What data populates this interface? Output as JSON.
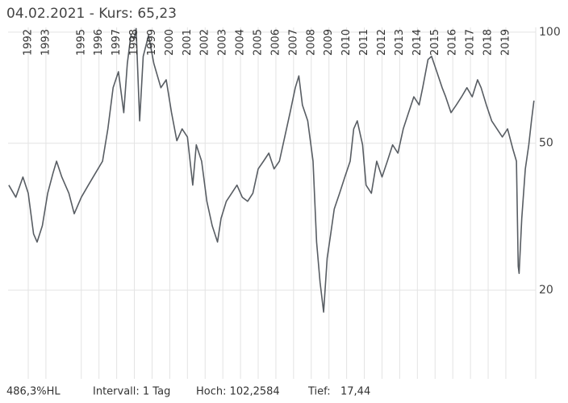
{
  "chart_data": {
    "type": "line",
    "title": "04.02.2021  -  Kurs: 65,23",
    "x": [
      1991.4,
      1991.8,
      1992.2,
      1992.5,
      1992.8,
      1993.0,
      1993.3,
      1993.6,
      1993.9,
      1994.1,
      1994.4,
      1994.8,
      1995.1,
      1995.5,
      1995.9,
      1996.3,
      1996.7,
      1997.0,
      1997.3,
      1997.6,
      1997.9,
      1998.1,
      1998.3,
      1998.5,
      1998.6,
      1998.8,
      1999.0,
      1999.3,
      1999.6,
      2000.0,
      2000.3,
      2000.6,
      2000.9,
      2001.2,
      2001.5,
      2001.8,
      2002.0,
      2002.3,
      2002.6,
      2002.9,
      2003.2,
      2003.4,
      2003.7,
      2004.0,
      2004.3,
      2004.6,
      2004.9,
      2005.2,
      2005.5,
      2005.8,
      2006.1,
      2006.4,
      2006.7,
      2007.0,
      2007.3,
      2007.6,
      2007.8,
      2008.0,
      2008.3,
      2008.6,
      2008.8,
      2009.0,
      2009.2,
      2009.4,
      2009.6,
      2009.8,
      2010.1,
      2010.4,
      2010.7,
      2010.9,
      2011.1,
      2011.4,
      2011.6,
      2011.9,
      2012.2,
      2012.5,
      2012.8,
      2013.1,
      2013.4,
      2013.7,
      2014.0,
      2014.3,
      2014.6,
      2014.8,
      2015.1,
      2015.3,
      2015.6,
      2015.9,
      2016.1,
      2016.4,
      2016.7,
      2017.0,
      2017.3,
      2017.6,
      2017.9,
      2018.1,
      2018.4,
      2018.7,
      2019.0,
      2019.3,
      2019.6,
      2019.9,
      2020.1,
      2020.2,
      2020.25,
      2020.4,
      2020.6,
      2020.8,
      2020.95,
      2021.09
    ],
    "values": [
      38.5,
      35.7,
      40.5,
      36.6,
      28.4,
      27.0,
      29.9,
      36.6,
      41.5,
      44.7,
      40.5,
      36.6,
      32.2,
      35.7,
      38.5,
      41.5,
      44.7,
      54.7,
      70.7,
      78.1,
      60.5,
      82.2,
      98.0,
      95.6,
      102.26,
      57.5,
      86.0,
      98.0,
      82.2,
      70.7,
      74.3,
      60.5,
      50.8,
      54.7,
      52.0,
      38.5,
      49.5,
      44.7,
      34.8,
      29.9,
      27.0,
      31.3,
      34.8,
      36.6,
      38.5,
      35.7,
      34.8,
      36.6,
      42.6,
      44.7,
      47.0,
      42.6,
      44.7,
      52.0,
      60.5,
      70.7,
      76.1,
      63.5,
      57.5,
      44.7,
      27.0,
      21.0,
      17.44,
      24.4,
      28.4,
      33.2,
      36.6,
      40.5,
      44.7,
      54.7,
      57.5,
      49.5,
      38.5,
      36.6,
      44.7,
      40.5,
      44.7,
      49.5,
      47.0,
      54.7,
      60.5,
      66.8,
      63.5,
      70.7,
      84.3,
      86.0,
      78.1,
      70.7,
      66.8,
      60.5,
      63.5,
      66.8,
      70.7,
      66.8,
      74.3,
      70.7,
      63.5,
      57.5,
      54.7,
      52.0,
      54.7,
      48.2,
      44.7,
      23.2,
      22.2,
      31.3,
      42.6,
      49.5,
      57.5,
      65.23
    ],
    "color": "#585d63",
    "xlim": [
      1991.36,
      2021.19
    ],
    "ylim": [
      11.5,
      103
    ],
    "log_y": true,
    "grid": true,
    "yticks": [
      100,
      50,
      20
    ],
    "xticks": [
      {
        "value": 1992.5,
        "label": "1992"
      },
      {
        "value": 1993.5,
        "label": "1993"
      },
      {
        "value": 1995.5,
        "label": "1995"
      },
      {
        "value": 1996.5,
        "label": "1996"
      },
      {
        "value": 1997.5,
        "label": "1997"
      },
      {
        "value": 1998.5,
        "label": "1998"
      },
      {
        "value": 1999.5,
        "label": "1999"
      },
      {
        "value": 2000.5,
        "label": "2000"
      },
      {
        "value": 2001.5,
        "label": "2001"
      },
      {
        "value": 2002.5,
        "label": "2002"
      },
      {
        "value": 2003.5,
        "label": "2003"
      },
      {
        "value": 2004.5,
        "label": "2004"
      },
      {
        "value": 2005.5,
        "label": "2005"
      },
      {
        "value": 2006.5,
        "label": "2006"
      },
      {
        "value": 2007.5,
        "label": "2007"
      },
      {
        "value": 2008.5,
        "label": "2008"
      },
      {
        "value": 2009.5,
        "label": "2009"
      },
      {
        "value": 2010.5,
        "label": "2010"
      },
      {
        "value": 2011.5,
        "label": "2011"
      },
      {
        "value": 2012.5,
        "label": "2012"
      },
      {
        "value": 2013.5,
        "label": "2013"
      },
      {
        "value": 2014.5,
        "label": "2014"
      },
      {
        "value": 2015.5,
        "label": "2015"
      },
      {
        "value": 2016.5,
        "label": "2016"
      },
      {
        "value": 2017.5,
        "label": "2017"
      },
      {
        "value": 2018.5,
        "label": "2018"
      },
      {
        "value": 2019.5,
        "label": "2019"
      }
    ],
    "footer": [
      "486,3%HL",
      "Intervall: 1 Tag",
      "Hoch: 102,2584",
      "Tief:",
      "17,44"
    ]
  }
}
